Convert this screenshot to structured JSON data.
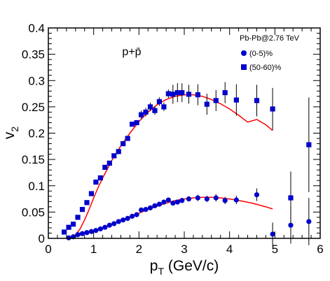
{
  "chart_data": {
    "type": "scatter",
    "title": "p+p̄",
    "xlabel": "p_T (GeV/c)",
    "ylabel": "v_2",
    "xlim": [
      0,
      6
    ],
    "ylim": [
      0,
      0.4
    ],
    "x_ticks": [
      "0",
      "1",
      "2",
      "3",
      "4",
      "5",
      "6"
    ],
    "y_ticks": [
      "0",
      "0.05",
      "0.1",
      "0.15",
      "0.2",
      "0.25",
      "0.3",
      "0.35",
      "0.4"
    ],
    "grid": false,
    "legend": {
      "title": "Pb-Pb@2.76 TeV",
      "placement": "top-right",
      "entries": [
        "(0-5)%",
        "(50-60)%"
      ]
    },
    "colors": {
      "markers": "#0000cc",
      "curve": "#ff0000",
      "error_bars": "#000000"
    },
    "series": [
      {
        "name": "(0-5)%",
        "marker": "circle",
        "x": [
          0.45,
          0.55,
          0.65,
          0.75,
          0.85,
          0.95,
          1.05,
          1.15,
          1.25,
          1.35,
          1.45,
          1.55,
          1.65,
          1.75,
          1.85,
          1.95,
          2.05,
          2.15,
          2.25,
          2.35,
          2.45,
          2.55,
          2.65,
          2.75,
          2.85,
          2.95,
          3.1,
          3.3,
          3.5,
          3.7,
          3.9,
          4.15,
          4.6,
          4.95,
          5.35,
          5.75
        ],
        "y": [
          0.001,
          0.003,
          0.007,
          0.009,
          0.011,
          0.013,
          0.015,
          0.018,
          0.021,
          0.025,
          0.028,
          0.032,
          0.035,
          0.038,
          0.042,
          0.045,
          0.054,
          0.055,
          0.058,
          0.062,
          0.065,
          0.069,
          0.073,
          0.067,
          0.069,
          0.072,
          0.075,
          0.077,
          0.075,
          0.077,
          0.072,
          0.073,
          0.083,
          0.008,
          0.025,
          0.032
        ],
        "yerr": [
          0.001,
          0.001,
          0.001,
          0.001,
          0.001,
          0.001,
          0.001,
          0.001,
          0.001,
          0.001,
          0.001,
          0.001,
          0.001,
          0.001,
          0.002,
          0.002,
          0.002,
          0.002,
          0.002,
          0.002,
          0.002,
          0.002,
          0.003,
          0.004,
          0.004,
          0.005,
          0.005,
          0.006,
          0.006,
          0.007,
          0.007,
          0.008,
          0.012,
          0.022,
          0.035,
          0.045
        ]
      },
      {
        "name": "(50-60)%",
        "marker": "square",
        "x": [
          0.35,
          0.45,
          0.55,
          0.65,
          0.75,
          0.85,
          0.95,
          1.05,
          1.15,
          1.25,
          1.35,
          1.45,
          1.55,
          1.65,
          1.75,
          1.85,
          1.95,
          2.05,
          2.15,
          2.25,
          2.35,
          2.45,
          2.55,
          2.65,
          2.75,
          2.85,
          2.95,
          3.1,
          3.3,
          3.5,
          3.7,
          3.9,
          4.15,
          4.6,
          4.95,
          5.35,
          5.75
        ],
        "y": [
          0.012,
          0.021,
          0.027,
          0.04,
          0.055,
          0.068,
          0.085,
          0.107,
          0.115,
          0.135,
          0.143,
          0.157,
          0.165,
          0.18,
          0.19,
          0.217,
          0.22,
          0.235,
          0.24,
          0.25,
          0.243,
          0.26,
          0.25,
          0.275,
          0.274,
          0.277,
          0.277,
          0.274,
          0.273,
          0.255,
          0.262,
          0.277,
          0.263,
          0.262,
          0.246,
          0.077,
          0.178
        ]
      }
    ],
    "fit_curves": [
      {
        "series": "(0-5)%",
        "x": [
          0.45,
          0.6,
          0.8,
          1.0,
          1.2,
          1.4,
          1.6,
          1.8,
          2.0,
          2.2,
          2.4,
          2.6,
          2.8,
          3.0,
          3.2,
          3.4,
          3.6,
          3.8,
          4.0,
          4.2,
          4.5,
          4.8,
          4.95
        ],
        "y": [
          0.001,
          0.004,
          0.009,
          0.014,
          0.02,
          0.027,
          0.034,
          0.041,
          0.048,
          0.055,
          0.061,
          0.067,
          0.072,
          0.075,
          0.077,
          0.078,
          0.078,
          0.077,
          0.075,
          0.072,
          0.067,
          0.06,
          0.056
        ]
      },
      {
        "series": "(50-60)%",
        "x": [
          0.5,
          0.6,
          0.7,
          0.8,
          0.9,
          1.0,
          1.1,
          1.2,
          1.4,
          1.6,
          1.8,
          2.0,
          2.2,
          2.4,
          2.6,
          2.8,
          3.0,
          3.2,
          3.4,
          3.6,
          3.8,
          4.0,
          4.2,
          4.4,
          4.6,
          4.8,
          4.95
        ],
        "y": [
          0.0,
          0.007,
          0.018,
          0.035,
          0.055,
          0.077,
          0.097,
          0.115,
          0.148,
          0.176,
          0.2,
          0.222,
          0.24,
          0.254,
          0.264,
          0.27,
          0.273,
          0.273,
          0.27,
          0.264,
          0.256,
          0.246,
          0.234,
          0.221,
          0.226,
          0.216,
          0.205
        ]
      }
    ]
  }
}
